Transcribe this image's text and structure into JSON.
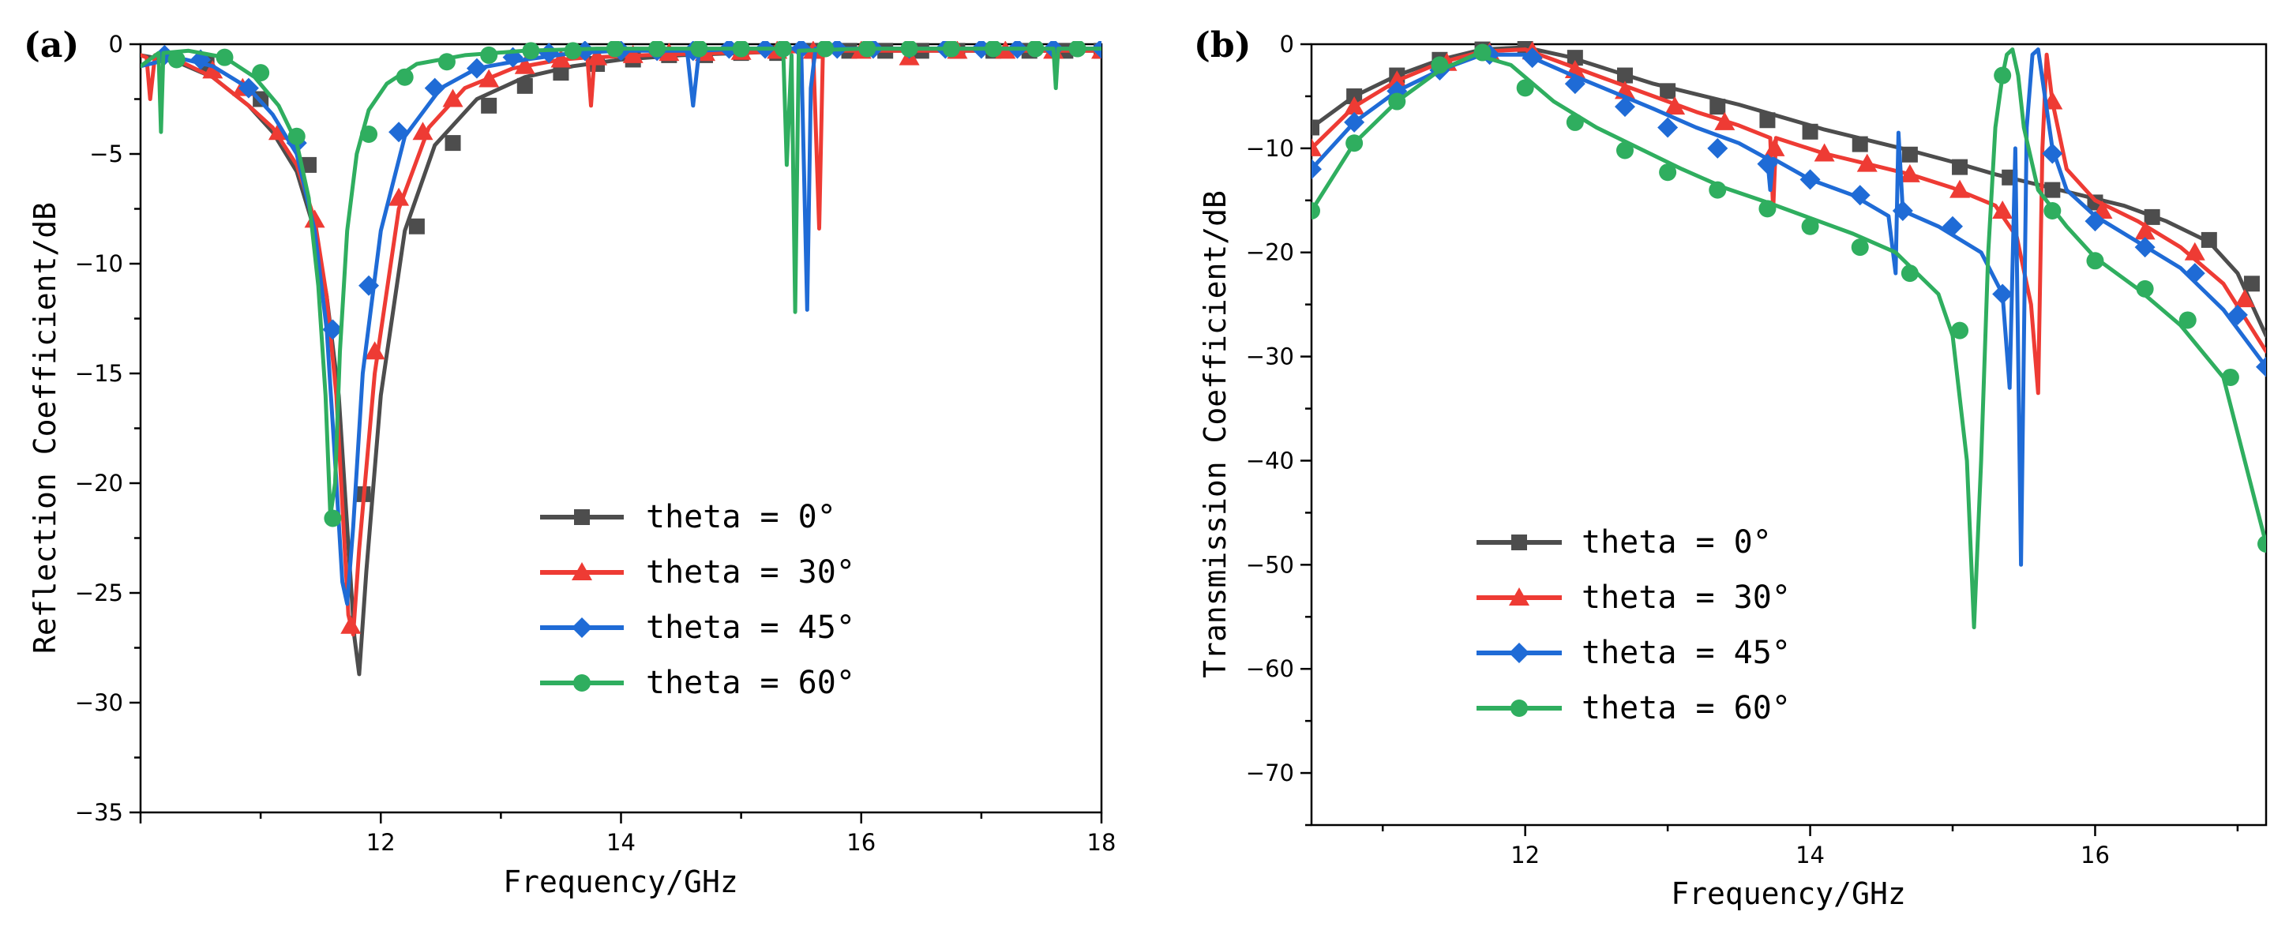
{
  "chart_data": [
    {
      "type": "line",
      "panel_label": "(a)",
      "xlabel": "Frequency/GHz",
      "ylabel": "Reflection Coefficient/dB",
      "xlim": [
        10,
        18
      ],
      "ylim": [
        -35,
        0
      ],
      "x_ticks": [
        12,
        14,
        16,
        18
      ],
      "x_tick_labels": [
        "12",
        "14",
        "16",
        "18"
      ],
      "y_ticks": [
        0,
        -5,
        -10,
        -15,
        -20,
        -25,
        -30,
        -35
      ],
      "y_tick_labels": [
        "0",
        "−5",
        "−10",
        "−15",
        "−20",
        "−25",
        "−30",
        "−35"
      ],
      "legend_position": "center-right",
      "series": [
        {
          "name": "theta = 0°",
          "color": "#4d4d4d",
          "marker": "square",
          "x": [
            10.0,
            10.3,
            10.6,
            10.9,
            11.1,
            11.3,
            11.45,
            11.55,
            11.65,
            11.72,
            11.78,
            11.82,
            11.88,
            12.0,
            12.2,
            12.45,
            12.8,
            13.2,
            13.6,
            14.0,
            14.5,
            15.0,
            15.5,
            16.0,
            16.5,
            17.0,
            17.5,
            18.0
          ],
          "values": [
            -0.5,
            -0.8,
            -1.5,
            -2.8,
            -4.0,
            -5.8,
            -8.5,
            -11.5,
            -16.0,
            -22.0,
            -27.0,
            -28.7,
            -24.0,
            -16.0,
            -8.5,
            -4.6,
            -2.5,
            -1.5,
            -1.0,
            -0.7,
            -0.5,
            -0.4,
            -0.3,
            -0.3,
            -0.3,
            -0.3,
            -0.3,
            -0.3
          ],
          "marker_x": [
            10.55,
            11.0,
            11.4,
            11.85,
            12.3,
            12.6,
            12.9,
            13.2,
            13.5,
            13.8,
            14.1,
            14.4,
            14.7,
            15.0,
            15.3,
            15.6,
            15.9,
            16.2,
            16.5,
            16.8,
            17.1,
            17.4,
            17.7,
            18.0
          ],
          "marker_values": [
            -0.9,
            -2.5,
            -5.5,
            -20.5,
            -8.3,
            -4.5,
            -2.8,
            -1.9,
            -1.3,
            -0.9,
            -0.7,
            -0.5,
            -0.5,
            -0.4,
            -0.4,
            -0.3,
            -0.3,
            -0.3,
            -0.3,
            -0.3,
            -0.3,
            -0.3,
            -0.3,
            -0.3
          ]
        },
        {
          "name": "theta = 30°",
          "color": "#ee3b34",
          "marker": "triangle",
          "x": [
            10.0,
            10.05,
            10.08,
            10.12,
            10.3,
            10.6,
            10.9,
            11.1,
            11.3,
            11.45,
            11.55,
            11.63,
            11.68,
            11.73,
            11.77,
            11.82,
            11.95,
            12.15,
            12.4,
            12.7,
            13.1,
            13.5,
            13.72,
            13.75,
            13.78,
            14.2,
            14.8,
            15.3,
            15.6,
            15.65,
            15.68,
            15.72,
            16.2,
            17.0,
            18.0
          ],
          "values": [
            -0.5,
            -0.6,
            -2.5,
            -0.5,
            -0.7,
            -1.5,
            -2.8,
            -3.8,
            -5.5,
            -8.0,
            -11.5,
            -16.0,
            -21.0,
            -26.0,
            -26.9,
            -23.0,
            -15.0,
            -7.5,
            -3.8,
            -2.0,
            -1.1,
            -0.7,
            -0.6,
            -2.8,
            -0.6,
            -0.5,
            -0.4,
            -0.35,
            -0.3,
            -8.4,
            -0.5,
            -0.3,
            -0.3,
            -0.3,
            -0.3
          ],
          "marker_x": [
            10.6,
            10.85,
            11.15,
            11.45,
            11.75,
            11.95,
            12.15,
            12.35,
            12.6,
            12.9,
            13.2,
            13.5,
            13.8,
            14.1,
            14.4,
            14.7,
            15.0,
            15.3,
            15.6,
            16.0,
            16.4,
            16.8,
            17.2,
            17.6,
            18.0
          ],
          "marker_values": [
            -1.2,
            -2.0,
            -4.0,
            -8.0,
            -26.5,
            -14.0,
            -7.0,
            -4.0,
            -2.5,
            -1.6,
            -1.0,
            -0.7,
            -0.6,
            -0.5,
            -0.4,
            -0.4,
            -0.35,
            -0.3,
            -0.3,
            -0.3,
            -0.6,
            -0.3,
            -0.3,
            -0.3,
            -0.3
          ]
        },
        {
          "name": "theta = 45°",
          "color": "#1f6bd6",
          "marker": "diamond",
          "x": [
            10.0,
            10.3,
            10.6,
            10.9,
            11.1,
            11.3,
            11.45,
            11.55,
            11.62,
            11.68,
            11.72,
            11.77,
            11.85,
            12.0,
            12.2,
            12.5,
            12.8,
            13.2,
            13.6,
            14.0,
            14.55,
            14.6,
            14.65,
            15.0,
            15.5,
            15.55,
            15.58,
            15.62,
            16.0,
            17.0,
            18.0
          ],
          "values": [
            -1.0,
            -0.6,
            -1.0,
            -2.0,
            -3.2,
            -5.0,
            -8.5,
            -13.0,
            -19.0,
            -24.5,
            -25.5,
            -22.0,
            -15.0,
            -8.5,
            -4.2,
            -2.0,
            -1.1,
            -0.7,
            -0.4,
            -0.3,
            -0.3,
            -2.8,
            -0.3,
            -0.2,
            -0.2,
            -12.1,
            -2.0,
            -0.2,
            -0.2,
            -0.2,
            -0.2
          ],
          "marker_x": [
            10.2,
            10.5,
            10.9,
            11.3,
            11.6,
            11.9,
            12.15,
            12.45,
            12.8,
            13.1,
            13.4,
            13.7,
            14.0,
            14.3,
            14.6,
            14.9,
            15.2,
            15.5,
            15.8,
            16.1,
            16.4,
            16.7,
            17.0,
            17.3,
            17.6,
            18.0
          ],
          "marker_values": [
            -0.5,
            -0.7,
            -2.0,
            -4.5,
            -13.0,
            -11.0,
            -4.0,
            -2.0,
            -1.1,
            -0.6,
            -0.4,
            -0.3,
            -0.3,
            -0.3,
            -0.3,
            -0.2,
            -0.2,
            -0.2,
            -0.2,
            -0.2,
            -0.2,
            -0.2,
            -0.2,
            -0.2,
            -0.2,
            -0.2
          ]
        },
        {
          "name": "theta = 60°",
          "color": "#2fae5f",
          "marker": "circle",
          "x": [
            10.0,
            10.15,
            10.17,
            10.19,
            10.4,
            10.7,
            10.95,
            11.15,
            11.3,
            11.4,
            11.48,
            11.54,
            11.58,
            11.62,
            11.66,
            11.72,
            11.8,
            11.9,
            12.05,
            12.3,
            12.7,
            13.2,
            13.8,
            14.5,
            15.2,
            15.35,
            15.38,
            15.42,
            15.45,
            15.48,
            16.0,
            17.0,
            17.6,
            17.62,
            17.64,
            18.0
          ],
          "values": [
            -1.0,
            -0.4,
            -4.0,
            -0.4,
            -0.3,
            -0.6,
            -1.5,
            -2.8,
            -4.5,
            -7.0,
            -11.0,
            -16.0,
            -21.5,
            -20.0,
            -14.0,
            -8.5,
            -5.0,
            -3.0,
            -1.8,
            -0.9,
            -0.5,
            -0.3,
            -0.2,
            -0.2,
            -0.2,
            -0.2,
            -5.5,
            -0.5,
            -12.2,
            -0.3,
            -0.2,
            -0.2,
            -0.2,
            -2.0,
            -0.2,
            -0.2
          ],
          "marker_x": [
            10.3,
            10.7,
            11.0,
            11.3,
            11.6,
            11.9,
            12.2,
            12.55,
            12.9,
            13.25,
            13.6,
            13.95,
            14.3,
            14.65,
            15.0,
            15.35,
            15.7,
            16.05,
            16.4,
            16.75,
            17.1,
            17.45,
            17.8
          ],
          "marker_values": [
            -0.7,
            -0.6,
            -1.3,
            -4.2,
            -21.6,
            -4.1,
            -1.5,
            -0.8,
            -0.5,
            -0.3,
            -0.3,
            -0.2,
            -0.2,
            -0.2,
            -0.2,
            -0.2,
            -0.2,
            -0.2,
            -0.2,
            -0.2,
            -0.2,
            -0.2,
            -0.2
          ]
        }
      ]
    },
    {
      "type": "line",
      "panel_label": "(b)",
      "xlabel": "Frequency/GHz",
      "ylabel": "Transmission Coefficient/dB",
      "xlim": [
        10.5,
        17.2
      ],
      "ylim": [
        -75,
        0
      ],
      "x_ticks": [
        12,
        14,
        16
      ],
      "x_tick_labels": [
        "12",
        "14",
        "16"
      ],
      "y_ticks": [
        0,
        -10,
        -20,
        -30,
        -40,
        -50,
        -60,
        -70
      ],
      "y_tick_labels": [
        "0",
        "−10",
        "−20",
        "−30",
        "−40",
        "−50",
        "−60",
        "−70"
      ],
      "legend_position": "lower-left",
      "series": [
        {
          "name": "theta = 0°",
          "color": "#4d4d4d",
          "marker": "square",
          "x": [
            10.5,
            10.8,
            11.1,
            11.4,
            11.7,
            12.0,
            12.3,
            12.6,
            12.9,
            13.2,
            13.5,
            13.8,
            14.1,
            14.4,
            14.7,
            15.0,
            15.3,
            15.6,
            15.9,
            16.2,
            16.5,
            16.8,
            17.0,
            17.2
          ],
          "values": [
            -8.0,
            -5.0,
            -3.0,
            -1.5,
            -0.5,
            -0.3,
            -1.2,
            -2.5,
            -3.8,
            -4.8,
            -5.8,
            -7.0,
            -8.2,
            -9.2,
            -10.2,
            -11.3,
            -12.5,
            -13.5,
            -14.5,
            -15.5,
            -17.0,
            -19.0,
            -22.0,
            -28.0
          ],
          "marker_x": [
            10.5,
            10.8,
            11.1,
            11.4,
            11.7,
            12.0,
            12.35,
            12.7,
            13.0,
            13.35,
            13.7,
            14.0,
            14.35,
            14.7,
            15.05,
            15.4,
            15.7,
            16.0,
            16.4,
            16.8,
            17.1
          ],
          "marker_values": [
            -8.0,
            -5.0,
            -3.0,
            -1.5,
            -0.5,
            -0.3,
            -1.3,
            -3.0,
            -4.5,
            -6.0,
            -7.3,
            -8.4,
            -9.6,
            -10.6,
            -11.8,
            -12.8,
            -14.0,
            -15.2,
            -16.6,
            -18.8,
            -23.0
          ]
        },
        {
          "name": "theta = 30°",
          "color": "#ee3b34",
          "marker": "triangle",
          "x": [
            10.5,
            10.8,
            11.1,
            11.4,
            11.7,
            12.0,
            12.3,
            12.6,
            12.9,
            13.2,
            13.5,
            13.72,
            13.74,
            13.76,
            14.1,
            14.4,
            14.7,
            15.0,
            15.3,
            15.45,
            15.55,
            15.6,
            15.63,
            15.66,
            15.7,
            15.8,
            16.0,
            16.3,
            16.6,
            16.9,
            17.2
          ],
          "values": [
            -10.0,
            -6.0,
            -3.5,
            -1.8,
            -0.7,
            -0.5,
            -2.0,
            -3.5,
            -5.0,
            -6.5,
            -7.8,
            -9.0,
            -16.0,
            -9.0,
            -10.5,
            -11.5,
            -12.5,
            -13.8,
            -15.5,
            -18.5,
            -25.0,
            -33.5,
            -10.0,
            -1.0,
            -5.5,
            -12.0,
            -15.0,
            -17.0,
            -19.5,
            -23.0,
            -29.5
          ],
          "marker_x": [
            10.5,
            10.8,
            11.1,
            11.45,
            11.75,
            12.05,
            12.35,
            12.7,
            13.05,
            13.4,
            13.75,
            14.1,
            14.4,
            14.7,
            15.05,
            15.35,
            15.7,
            16.05,
            16.35,
            16.7,
            17.05
          ],
          "marker_values": [
            -10.0,
            -6.0,
            -3.5,
            -1.8,
            -0.8,
            -0.7,
            -2.5,
            -4.5,
            -6.0,
            -7.5,
            -10.0,
            -10.5,
            -11.5,
            -12.5,
            -14.0,
            -16.0,
            -5.5,
            -16.0,
            -18.0,
            -20.0,
            -24.5
          ]
        },
        {
          "name": "theta = 45°",
          "color": "#1f6bd6",
          "marker": "diamond",
          "x": [
            10.5,
            10.8,
            11.1,
            11.4,
            11.7,
            12.0,
            12.3,
            12.6,
            12.9,
            13.2,
            13.5,
            13.7,
            13.72,
            13.74,
            14.0,
            14.3,
            14.55,
            14.6,
            14.62,
            14.65,
            14.9,
            15.2,
            15.35,
            15.4,
            15.44,
            15.48,
            15.52,
            15.56,
            15.6,
            15.7,
            15.8,
            16.0,
            16.3,
            16.6,
            16.9,
            17.2
          ],
          "values": [
            -12.0,
            -7.5,
            -4.5,
            -2.5,
            -1.0,
            -1.0,
            -2.8,
            -4.5,
            -6.2,
            -8.0,
            -9.5,
            -11.0,
            -14.0,
            -11.0,
            -13.0,
            -14.5,
            -16.5,
            -22.0,
            -8.5,
            -16.0,
            -17.5,
            -20.0,
            -24.0,
            -33.0,
            -10.0,
            -50.0,
            -8.0,
            -1.0,
            -0.5,
            -10.0,
            -14.0,
            -16.5,
            -19.0,
            -21.5,
            -25.5,
            -31.0
          ],
          "marker_x": [
            10.5,
            10.8,
            11.1,
            11.4,
            11.75,
            12.05,
            12.35,
            12.7,
            13.0,
            13.35,
            13.7,
            14.0,
            14.35,
            14.65,
            15.0,
            15.35,
            15.7,
            16.0,
            16.35,
            16.7,
            17.0,
            17.2
          ],
          "marker_values": [
            -12.0,
            -7.5,
            -4.5,
            -2.5,
            -1.0,
            -1.3,
            -3.8,
            -6.0,
            -8.0,
            -10.0,
            -11.5,
            -13.0,
            -14.5,
            -16.0,
            -17.5,
            -24.0,
            -10.5,
            -17.0,
            -19.5,
            -22.0,
            -26.0,
            -31.0
          ]
        },
        {
          "name": "theta = 60°",
          "color": "#2fae5f",
          "marker": "circle",
          "x": [
            10.5,
            10.8,
            11.1,
            11.4,
            11.65,
            11.9,
            12.2,
            12.5,
            12.8,
            13.1,
            13.4,
            13.7,
            14.0,
            14.3,
            14.6,
            14.9,
            15.0,
            15.1,
            15.15,
            15.2,
            15.25,
            15.3,
            15.35,
            15.38,
            15.42,
            15.46,
            15.5,
            15.6,
            15.8,
            16.0,
            16.3,
            16.6,
            16.9,
            17.2
          ],
          "values": [
            -16.0,
            -9.5,
            -5.5,
            -2.5,
            -1.0,
            -2.0,
            -5.5,
            -8.0,
            -10.0,
            -12.0,
            -13.8,
            -15.2,
            -16.7,
            -18.2,
            -20.0,
            -24.0,
            -28.0,
            -40.0,
            -56.0,
            -40.0,
            -20.0,
            -8.0,
            -3.0,
            -1.0,
            -0.5,
            -3.0,
            -8.0,
            -14.0,
            -17.5,
            -20.5,
            -23.5,
            -27.0,
            -32.0,
            -48.0
          ],
          "marker_x": [
            10.5,
            10.8,
            11.1,
            11.4,
            11.7,
            12.0,
            12.35,
            12.7,
            13.0,
            13.35,
            13.7,
            14.0,
            14.35,
            14.7,
            15.05,
            15.35,
            15.7,
            16.0,
            16.35,
            16.65,
            16.95,
            17.2
          ],
          "marker_values": [
            -16.0,
            -9.5,
            -5.5,
            -2.0,
            -0.8,
            -4.2,
            -7.5,
            -10.2,
            -12.3,
            -14.0,
            -15.8,
            -17.5,
            -19.5,
            -22.0,
            -27.5,
            -3.0,
            -16.0,
            -20.8,
            -23.5,
            -26.5,
            -32.0,
            -48.0
          ]
        }
      ]
    }
  ]
}
